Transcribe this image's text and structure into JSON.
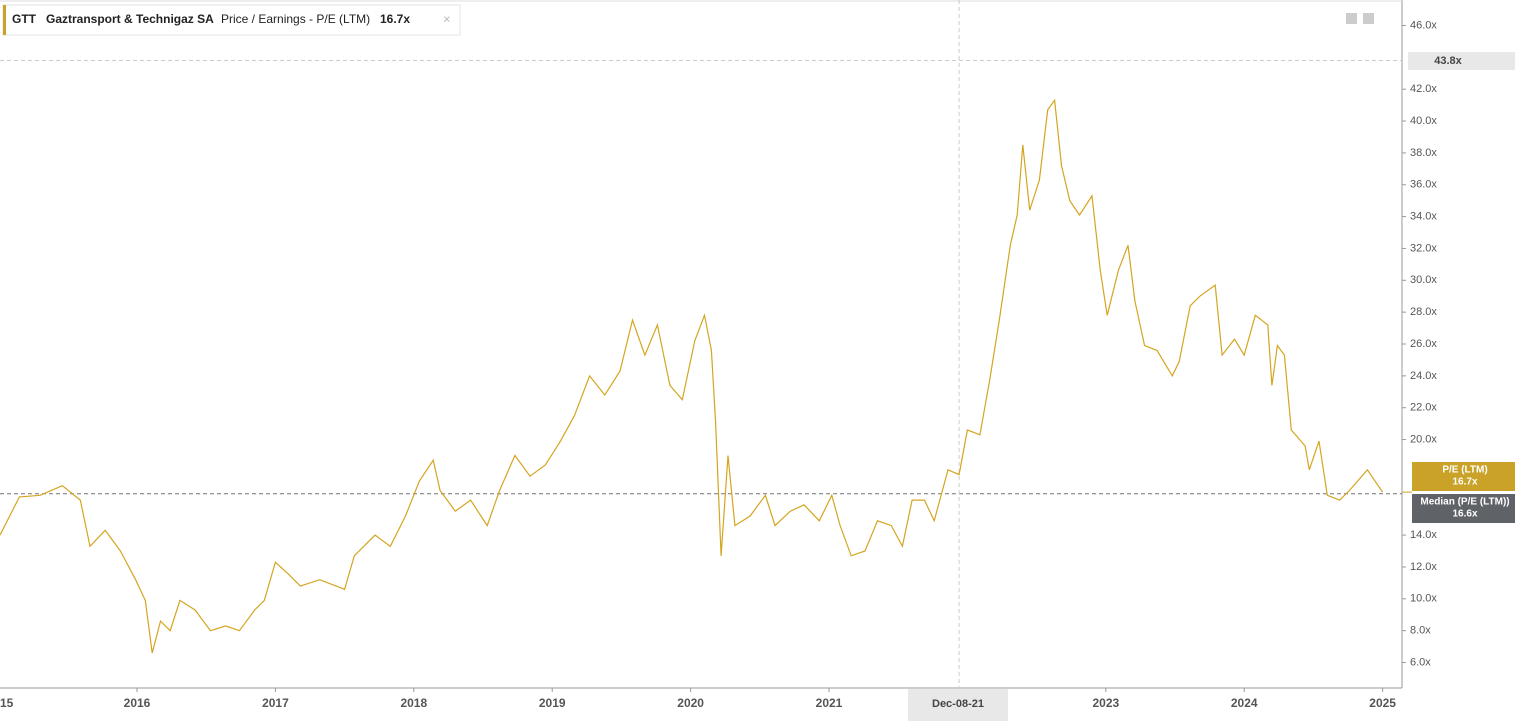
{
  "header": {
    "ticker": "GTT",
    "company": "Gaztransport & Technigaz SA"
  },
  "chart_data": {
    "type": "line",
    "series": [
      {
        "name": "Price / Earnings - P/E (LTM)",
        "color": "#d4a520",
        "x": [
          2015.01,
          2015.15,
          2015.3,
          2015.46,
          2015.59,
          2015.66,
          2015.77,
          2015.88,
          2015.99,
          2016.06,
          2016.11,
          2016.17,
          2016.24,
          2016.31,
          2016.42,
          2016.53,
          2016.64,
          2016.74,
          2016.85,
          2016.92,
          2017.0,
          2017.1,
          2017.18,
          2017.32,
          2017.5,
          2017.57,
          2017.72,
          2017.83,
          2017.94,
          2018.04,
          2018.14,
          2018.19,
          2018.3,
          2018.41,
          2018.53,
          2018.62,
          2018.73,
          2018.84,
          2018.95,
          2019.06,
          2019.16,
          2019.27,
          2019.38,
          2019.49,
          2019.58,
          2019.67,
          2019.76,
          2019.85,
          2019.94,
          2020.03,
          2020.1,
          2020.15,
          2020.18,
          2020.22,
          2020.27,
          2020.32,
          2020.43,
          2020.54,
          2020.61,
          2020.72,
          2020.82,
          2020.93,
          2021.02,
          2021.08,
          2021.16,
          2021.26,
          2021.35,
          2021.45,
          2021.53,
          2021.6,
          2021.69,
          2021.76,
          2021.86,
          2021.94,
          2022.0,
          2022.09,
          2022.16,
          2022.23,
          2022.31,
          2022.36,
          2022.4,
          2022.45,
          2022.52,
          2022.58,
          2022.63,
          2022.68,
          2022.74,
          2022.81,
          2022.9,
          2022.96,
          2023.01,
          2023.09,
          2023.16,
          2023.21,
          2023.28,
          2023.37,
          2023.48,
          2023.53,
          2023.61,
          2023.68,
          2023.79,
          2023.84,
          2023.93,
          2024.0,
          2024.08,
          2024.17,
          2024.2,
          2024.24,
          2024.29,
          2024.34,
          2024.44,
          2024.47,
          2024.54,
          2024.6,
          2024.69,
          2024.76,
          2024.89,
          2025.0
        ],
        "values": [
          14.0,
          16.4,
          16.5,
          17.1,
          16.2,
          13.3,
          14.3,
          13.0,
          11.2,
          9.9,
          6.6,
          8.6,
          8.0,
          9.9,
          9.3,
          8.0,
          8.3,
          8.0,
          9.3,
          9.9,
          12.3,
          11.5,
          10.8,
          11.2,
          10.6,
          12.7,
          14.0,
          13.3,
          15.2,
          17.4,
          18.7,
          16.8,
          15.5,
          16.2,
          14.6,
          16.8,
          19.0,
          17.7,
          18.4,
          19.9,
          21.5,
          24.0,
          22.8,
          24.3,
          27.5,
          25.3,
          27.2,
          23.4,
          22.5,
          26.2,
          27.8,
          25.6,
          21.2,
          12.7,
          19.0,
          14.6,
          15.2,
          16.5,
          14.6,
          15.5,
          15.9,
          14.9,
          16.5,
          14.6,
          12.7,
          13.0,
          14.9,
          14.6,
          13.3,
          16.2,
          16.2,
          14.9,
          18.1,
          17.8,
          20.6,
          20.3,
          23.7,
          27.5,
          32.2,
          34.1,
          38.5,
          34.4,
          36.3,
          40.7,
          41.3,
          37.2,
          35.0,
          34.1,
          35.3,
          30.6,
          27.8,
          30.6,
          32.2,
          28.7,
          25.9,
          25.6,
          24.0,
          24.9,
          28.4,
          29.0,
          29.7,
          25.3,
          26.3,
          25.3,
          27.8,
          27.2,
          23.4,
          25.9,
          25.3,
          20.6,
          19.6,
          18.1,
          19.9,
          16.5,
          16.2,
          16.8,
          18.1,
          16.7
        ]
      }
    ],
    "xlim": [
      2015.01,
      2025.14
    ],
    "xticks": [
      {
        "value": 2015,
        "label": "15"
      },
      2016,
      2017,
      2018,
      2019,
      2020,
      2021,
      2023,
      2024,
      2025
    ],
    "ylim": [
      4.4,
      47.6
    ],
    "yticks": [
      {
        "value": 6,
        "label": "6.0x"
      },
      {
        "value": 8,
        "label": "8.0x"
      },
      {
        "value": 10,
        "label": "10.0x"
      },
      {
        "value": 12,
        "label": "12.0x"
      },
      {
        "value": 14,
        "label": "14.0x"
      },
      {
        "value": 20,
        "label": "20.0x"
      },
      {
        "value": 22,
        "label": "22.0x"
      },
      {
        "value": 24,
        "label": "24.0x"
      },
      {
        "value": 26,
        "label": "26.0x"
      },
      {
        "value": 28,
        "label": "28.0x"
      },
      {
        "value": 30,
        "label": "30.0x"
      },
      {
        "value": 32,
        "label": "32.0x"
      },
      {
        "value": 34,
        "label": "34.0x"
      },
      {
        "value": 36,
        "label": "36.0x"
      },
      {
        "value": 38,
        "label": "38.0x"
      },
      {
        "value": 40,
        "label": "40.0x"
      },
      {
        "value": 42,
        "label": "42.0x"
      },
      {
        "value": 46,
        "label": "46.0x"
      }
    ],
    "current": {
      "name": "P/E (LTM)",
      "value": 16.7,
      "label": "16.7x",
      "color": "#c9a227"
    },
    "median": {
      "name": "Median (P/E (LTM))",
      "value": 16.6,
      "label": "16.6x",
      "color": "#5f6368"
    },
    "crosshair_x": {
      "value": 2021.94,
      "label": "Dec-08-21"
    },
    "crosshair_y": {
      "value": 43.8,
      "label": "43.8x"
    }
  }
}
